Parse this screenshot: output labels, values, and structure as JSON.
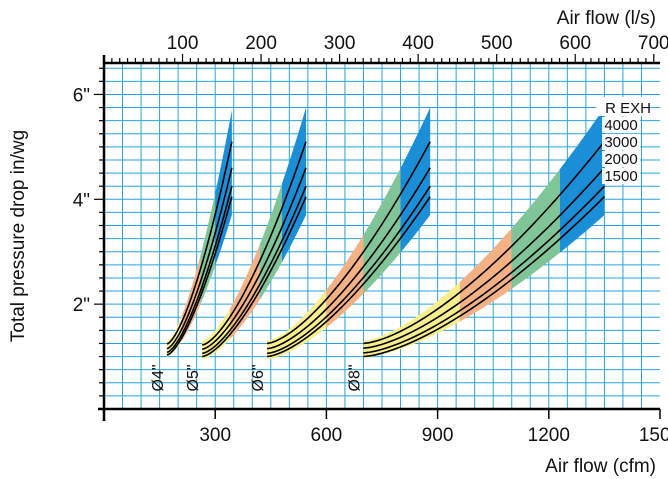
{
  "chart_data": {
    "type": "line",
    "title": "",
    "xlabel": "Air flow (cfm)",
    "x2label": "Air flow (l/s)",
    "ylabel": "Total pressure drop in/wg",
    "xlim": [
      0,
      1500
    ],
    "ylim": [
      0,
      6.6
    ],
    "x_ticks": [
      300,
      600,
      900,
      1200,
      1500
    ],
    "x2_ticks": [
      100,
      200,
      300,
      400,
      500,
      600,
      700
    ],
    "y_ticks": [
      {
        "v": 2,
        "label": "2\""
      },
      {
        "v": 4,
        "label": "4\""
      },
      {
        "v": 6,
        "label": "6\""
      }
    ],
    "grid": true,
    "legend": {
      "title": "R EXH",
      "placement": "right",
      "entries": [
        "4000",
        "3000",
        "2000",
        "1500"
      ]
    },
    "zone_colors": {
      "yellow": "#f7ef8c",
      "orange": "#f4b183",
      "green": "#7fc597",
      "blue": "#1a8fd8"
    },
    "grid_color": "#29a3e0",
    "ducts": [
      {
        "label": "Ø4\"",
        "x_range": [
          170,
          345
        ],
        "zones": [
          {
            "to": 210,
            "color": "yellow"
          },
          {
            "to": 260,
            "color": "orange"
          },
          {
            "to": 300,
            "color": "green"
          },
          {
            "to": 345,
            "color": "blue"
          }
        ],
        "band": {
          "low_start": 1.0,
          "low_end": 3.7,
          "high_start": 1.3,
          "high_end": 5.7
        },
        "series": [
          {
            "name": "4000",
            "start": 1.24,
            "end": 5.1
          },
          {
            "name": "3000",
            "start": 1.15,
            "end": 4.6
          },
          {
            "name": "2000",
            "start": 1.08,
            "end": 4.25
          },
          {
            "name": "1500",
            "start": 1.03,
            "end": 4.05
          }
        ]
      },
      {
        "label": "Ø5\"",
        "x_range": [
          265,
          545
        ],
        "zones": [
          {
            "to": 340,
            "color": "yellow"
          },
          {
            "to": 420,
            "color": "orange"
          },
          {
            "to": 480,
            "color": "green"
          },
          {
            "to": 545,
            "color": "blue"
          }
        ],
        "band": {
          "low_start": 0.95,
          "low_end": 3.7,
          "high_start": 1.3,
          "high_end": 5.75
        },
        "series": [
          {
            "name": "4000",
            "start": 1.22,
            "end": 5.1
          },
          {
            "name": "3000",
            "start": 1.14,
            "end": 4.6
          },
          {
            "name": "2000",
            "start": 1.06,
            "end": 4.25
          },
          {
            "name": "1500",
            "start": 1.0,
            "end": 4.05
          }
        ]
      },
      {
        "label": "Ø6\"",
        "x_range": [
          440,
          880
        ],
        "zones": [
          {
            "to": 600,
            "color": "yellow"
          },
          {
            "to": 700,
            "color": "orange"
          },
          {
            "to": 800,
            "color": "green"
          },
          {
            "to": 880,
            "color": "blue"
          }
        ],
        "band": {
          "low_start": 0.95,
          "low_end": 3.7,
          "high_start": 1.3,
          "high_end": 5.75
        },
        "series": [
          {
            "name": "4000",
            "start": 1.25,
            "end": 5.1
          },
          {
            "name": "3000",
            "start": 1.15,
            "end": 4.6
          },
          {
            "name": "2000",
            "start": 1.06,
            "end": 4.25
          },
          {
            "name": "1500",
            "start": 1.0,
            "end": 4.05
          }
        ]
      },
      {
        "label": "Ø8\"",
        "x_range": [
          700,
          1350
        ],
        "zones": [
          {
            "to": 960,
            "color": "yellow"
          },
          {
            "to": 1100,
            "color": "orange"
          },
          {
            "to": 1230,
            "color": "green"
          },
          {
            "to": 1350,
            "color": "blue"
          }
        ],
        "band": {
          "low_start": 0.98,
          "low_end": 3.7,
          "high_start": 1.3,
          "high_end": 5.75
        },
        "series": [
          {
            "name": "4000",
            "start": 1.25,
            "end": 5.1
          },
          {
            "name": "3000",
            "start": 1.16,
            "end": 4.6
          },
          {
            "name": "2000",
            "start": 1.07,
            "end": 4.25
          },
          {
            "name": "1500",
            "start": 1.0,
            "end": 4.05
          }
        ]
      }
    ]
  }
}
